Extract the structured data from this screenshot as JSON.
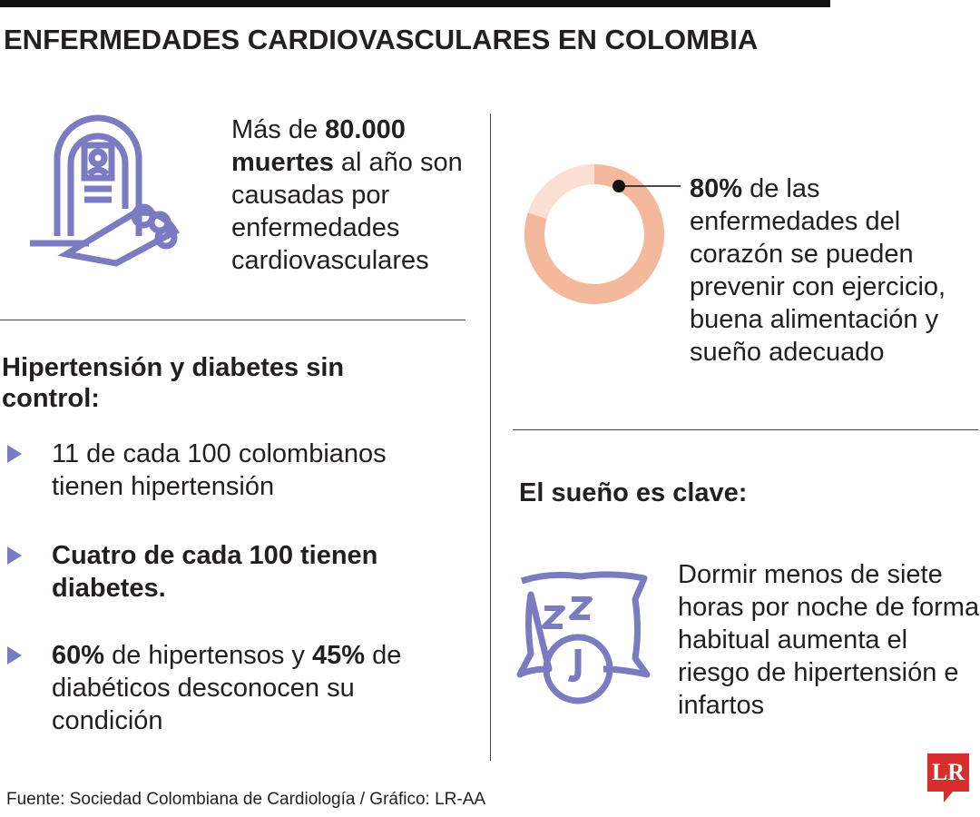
{
  "header": {
    "title": "ENFERMEDADES CARDIOVASCULARES EN COLOMBIA"
  },
  "deaths": {
    "segments": [
      {
        "text": "Más de "
      },
      {
        "text": "80.000 muertes",
        "bold": true
      },
      {
        "text": " al año son causadas por enfermedades cardiovasculares"
      }
    ]
  },
  "control": {
    "heading": "Hipertensión y diabetes sin control:",
    "bullets": [
      [
        {
          "text": "11 de cada 100 colombianos tienen hipertensión"
        }
      ],
      [
        {
          "text": "Cuatro de cada 100 tienen diabetes.",
          "bold": true
        }
      ],
      [
        {
          "text": "60%",
          "bold": true
        },
        {
          "text": " de hipertensos y "
        },
        {
          "text": "45%",
          "bold": true
        },
        {
          "text": " de diabéticos desconocen su condición"
        }
      ]
    ]
  },
  "prevention": {
    "value": 80,
    "value_label": "80%",
    "text": "de las enfermedades del corazón se pueden prevenir con ejercicio, buena alimentación y sueño adecuado",
    "color": "#f4b99c",
    "rest_color": "#fadfd2"
  },
  "sleep": {
    "heading": "El sueño es clave:",
    "text": "Dormir menos de siete horas por noche de forma habitual aumenta el riesgo de hipertensión e infartos"
  },
  "footer": {
    "source": "Fuente: Sociedad Colombiana de Cardiología / Gráfico: LR-AA",
    "logo": "LR"
  }
}
